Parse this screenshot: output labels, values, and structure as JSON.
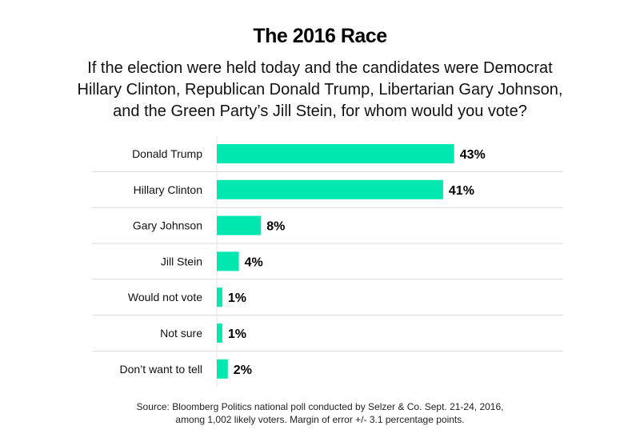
{
  "chart_data": {
    "type": "bar",
    "orientation": "horizontal",
    "title": "The 2016 Race",
    "subtitle_lines": [
      "If the election were held today and the candidates were Democrat",
      "Hillary Clinton, Republican Donald Trump, Libertarian Gary Johnson,",
      "and the Green Party’s Jill Stein, for whom would you vote?"
    ],
    "categories": [
      "Donald Trump",
      "Hillary Clinton",
      "Gary Johnson",
      "Jill Stein",
      "Would not vote",
      "Not sure",
      "Don’t want to tell"
    ],
    "values": [
      43,
      41,
      8,
      4,
      1,
      1,
      2
    ],
    "data_labels": [
      "43%",
      "41%",
      "8%",
      "4%",
      "1%",
      "1%",
      "2%"
    ],
    "xlim": [
      0,
      100
    ],
    "grid": false,
    "legend": "none",
    "bar_color": "#00e8b0",
    "source_lines": [
      "Source: Bloomberg Politics national poll conducted by Selzer & Co. Sept. 21-24, 2016,",
      "among 1,002 likely voters. Margin of error +/- 3.1 percentage points."
    ]
  }
}
